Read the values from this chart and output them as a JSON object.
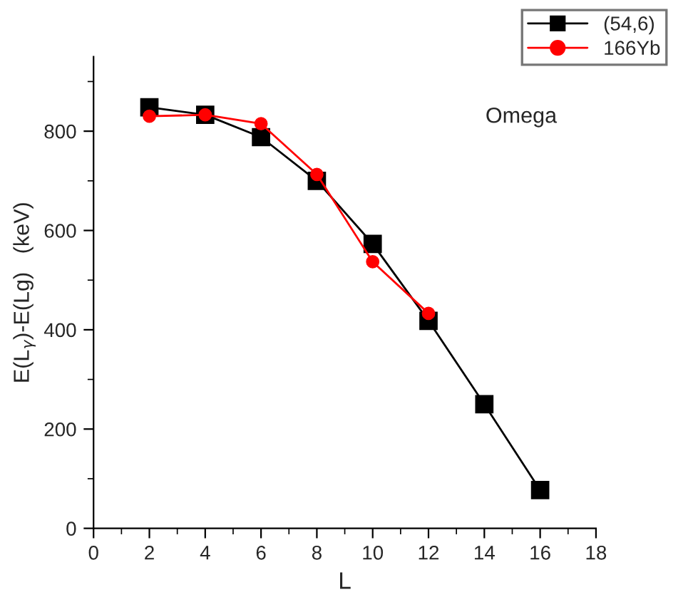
{
  "chart_data": {
    "type": "line",
    "xlabel": "L",
    "ylabel": "E(L$_{γ}$)-E(Lg)   (keV)",
    "annotations": [
      "Omega"
    ],
    "xlim": [
      0,
      18
    ],
    "ylim": [
      0,
      950
    ],
    "xticks": [
      0,
      {
        "value": 1,
        "label": null
      },
      2,
      {
        "value": 3,
        "label": null
      },
      4,
      {
        "value": 5,
        "label": null
      },
      6,
      {
        "value": 7,
        "label": null
      },
      8,
      {
        "value": 9,
        "label": null
      },
      10,
      {
        "value": 11,
        "label": null
      },
      12,
      {
        "value": 13,
        "label": null
      },
      14,
      {
        "value": 15,
        "label": null
      },
      16,
      {
        "value": 17,
        "label": null
      },
      18
    ],
    "yticks": [
      0,
      {
        "value": 100,
        "label": null
      },
      200,
      {
        "value": 300,
        "label": null
      },
      400,
      {
        "value": 500,
        "label": null
      },
      600,
      {
        "value": 700,
        "label": null
      },
      800,
      {
        "value": 900,
        "label": null
      }
    ],
    "grid": false,
    "legend": "top right",
    "series": [
      {
        "name": "(54,6)",
        "color": "#000000",
        "marker": "square",
        "x": [
          2,
          4,
          6,
          8,
          10,
          12,
          14,
          16
        ],
        "values": [
          848,
          833,
          788,
          700,
          573,
          418,
          250,
          77
        ]
      },
      {
        "name": "166Yb",
        "color": "#ff0000",
        "marker": "circle",
        "x": [
          2,
          4,
          6,
          8,
          10,
          12
        ],
        "values": [
          830,
          833,
          815,
          713,
          537,
          433
        ]
      }
    ]
  }
}
